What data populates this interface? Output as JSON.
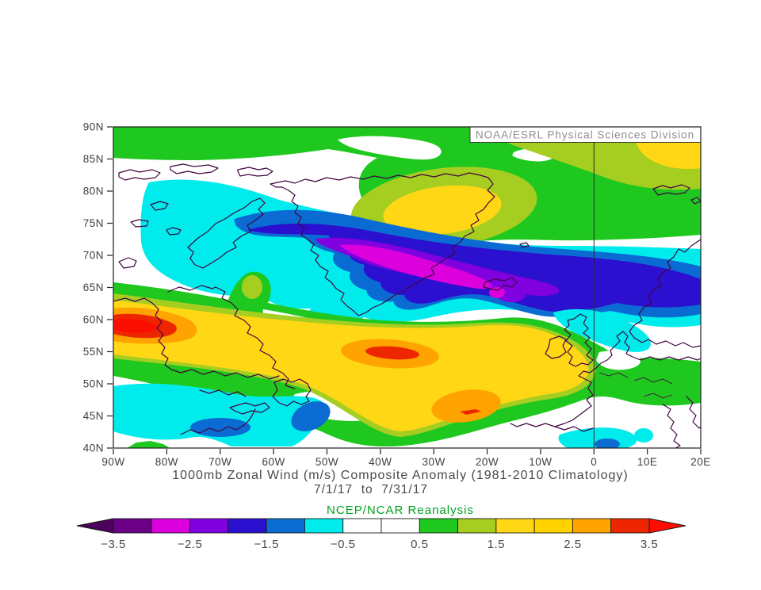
{
  "attribution": "NOAA/ESRL Physical Sciences Division",
  "titles": {
    "title": "1000mb Zonal Wind (m/s) Composite Anomaly (1981-2010 Climatology)",
    "subtitle": "7/1/17  to  7/31/17",
    "source": "NCEP/NCAR Reanalysis",
    "source_color": "#00A21E"
  },
  "axes": {
    "lat_ticks": [
      "90N",
      "85N",
      "80N",
      "75N",
      "70N",
      "65N",
      "60N",
      "55N",
      "50N",
      "45N",
      "40N"
    ],
    "lon_ticks": [
      "90W",
      "80W",
      "70W",
      "60W",
      "50W",
      "40W",
      "30W",
      "20W",
      "10W",
      "0",
      "10E",
      "20E"
    ]
  },
  "colorbar": {
    "tick_labels": [
      "−3.5",
      "−2.5",
      "−1.5",
      "−0.5",
      "0.5",
      "1.5",
      "2.5",
      "3.5"
    ],
    "segment_colors": [
      "#6B0087",
      "#DC00DC",
      "#8000E0",
      "#2B10D0",
      "#0A6CD2",
      "#00ECEC",
      "#FFFFFF",
      "#FFFFFF",
      "#1FC81F",
      "#A6CE21",
      "#FFD714",
      "#FFD200",
      "#FFA300",
      "#EE2600"
    ],
    "left_arrow_color": "#4D005C",
    "right_arrow_color": "#FF0D00",
    "units": "m/s"
  },
  "chart_data": {
    "type": "heatmap",
    "subtype": "filled-contour-map",
    "title": "1000mb Zonal Wind (m/s) Composite Anomaly (1981-2010 Climatology)",
    "subtitle": "7/1/17 to 7/31/17",
    "source_label": "NCEP/NCAR Reanalysis",
    "attribution": "NOAA/ESRL Physical Sciences Division",
    "variable": "1000mb zonal wind anomaly",
    "units": "m/s",
    "x_axis": {
      "label": "longitude",
      "tick_labels": [
        "90W",
        "80W",
        "70W",
        "60W",
        "50W",
        "40W",
        "30W",
        "20W",
        "10W",
        "0",
        "10E",
        "20E"
      ],
      "range": [
        -90,
        20
      ]
    },
    "y_axis": {
      "label": "latitude",
      "tick_labels": [
        "90N",
        "85N",
        "80N",
        "75N",
        "70N",
        "65N",
        "60N",
        "55N",
        "50N",
        "45N",
        "40N"
      ],
      "range": [
        40,
        90
      ]
    },
    "contour_interval": 0.5,
    "contour_boundaries": [
      -3.5,
      -3.0,
      -2.5,
      -2.0,
      -1.5,
      -1.0,
      -0.5,
      0.0,
      0.5,
      1.0,
      1.5,
      2.0,
      2.5,
      3.0,
      3.5
    ],
    "palette": [
      "#4D005C",
      "#6B0087",
      "#DC00DC",
      "#8000E0",
      "#2B10D0",
      "#0A6CD2",
      "#00ECEC",
      "#FFFFFF",
      "#FFFFFF",
      "#1FC81F",
      "#A6CE21",
      "#FFD714",
      "#FFD200",
      "#FFA300",
      "#EE2600",
      "#FF0D00"
    ],
    "legend_position": "bottom",
    "grid": false,
    "features": [
      {
        "sign": "negative",
        "min_mps": -3.0,
        "region": "elongated band from Davis Strait across central/southern Greenland to Iceland",
        "approx_center": "70N 40W"
      },
      {
        "sign": "negative",
        "min_mps": -2.0,
        "region": "band continues east to Norwegian Sea / Scandinavia",
        "approx_center": "64N 5E"
      },
      {
        "sign": "negative",
        "min_mps": -1.0,
        "region": "Canadian Arctic Archipelago",
        "approx_center": "76N 78W"
      },
      {
        "sign": "negative",
        "min_mps": -1.5,
        "region": "off New England and Nova Scotia",
        "approx_center": "44N 68W"
      },
      {
        "sign": "negative",
        "min_mps": -1.0,
        "region": "Scotland / North Sea",
        "approx_center": "60N 5W"
      },
      {
        "sign": "negative",
        "min_mps": -1.5,
        "region": "western Mediterranean",
        "approx_center": "41N 3E"
      },
      {
        "sign": "positive",
        "max_mps": 3.5,
        "region": "eastern Hudson Bay / northern Quebec maximum",
        "approx_center": "59N 83W"
      },
      {
        "sign": "positive",
        "max_mps": 3.5,
        "region": "central North Atlantic maximum",
        "approx_center": "55N 38W"
      },
      {
        "sign": "positive",
        "max_mps": 3.0,
        "region": "northeast Atlantic secondary maximum",
        "approx_center": "46N 23W"
      },
      {
        "sign": "positive",
        "max_mps": 2.0,
        "region": "Greenland Sea",
        "approx_center": "77N 30W"
      },
      {
        "sign": "positive",
        "max_mps": 1.5,
        "region": "broad band 40-57N from North America to western Europe and high-Arctic cap near 85-90N",
        "approx_center": "50N 30W"
      }
    ]
  }
}
